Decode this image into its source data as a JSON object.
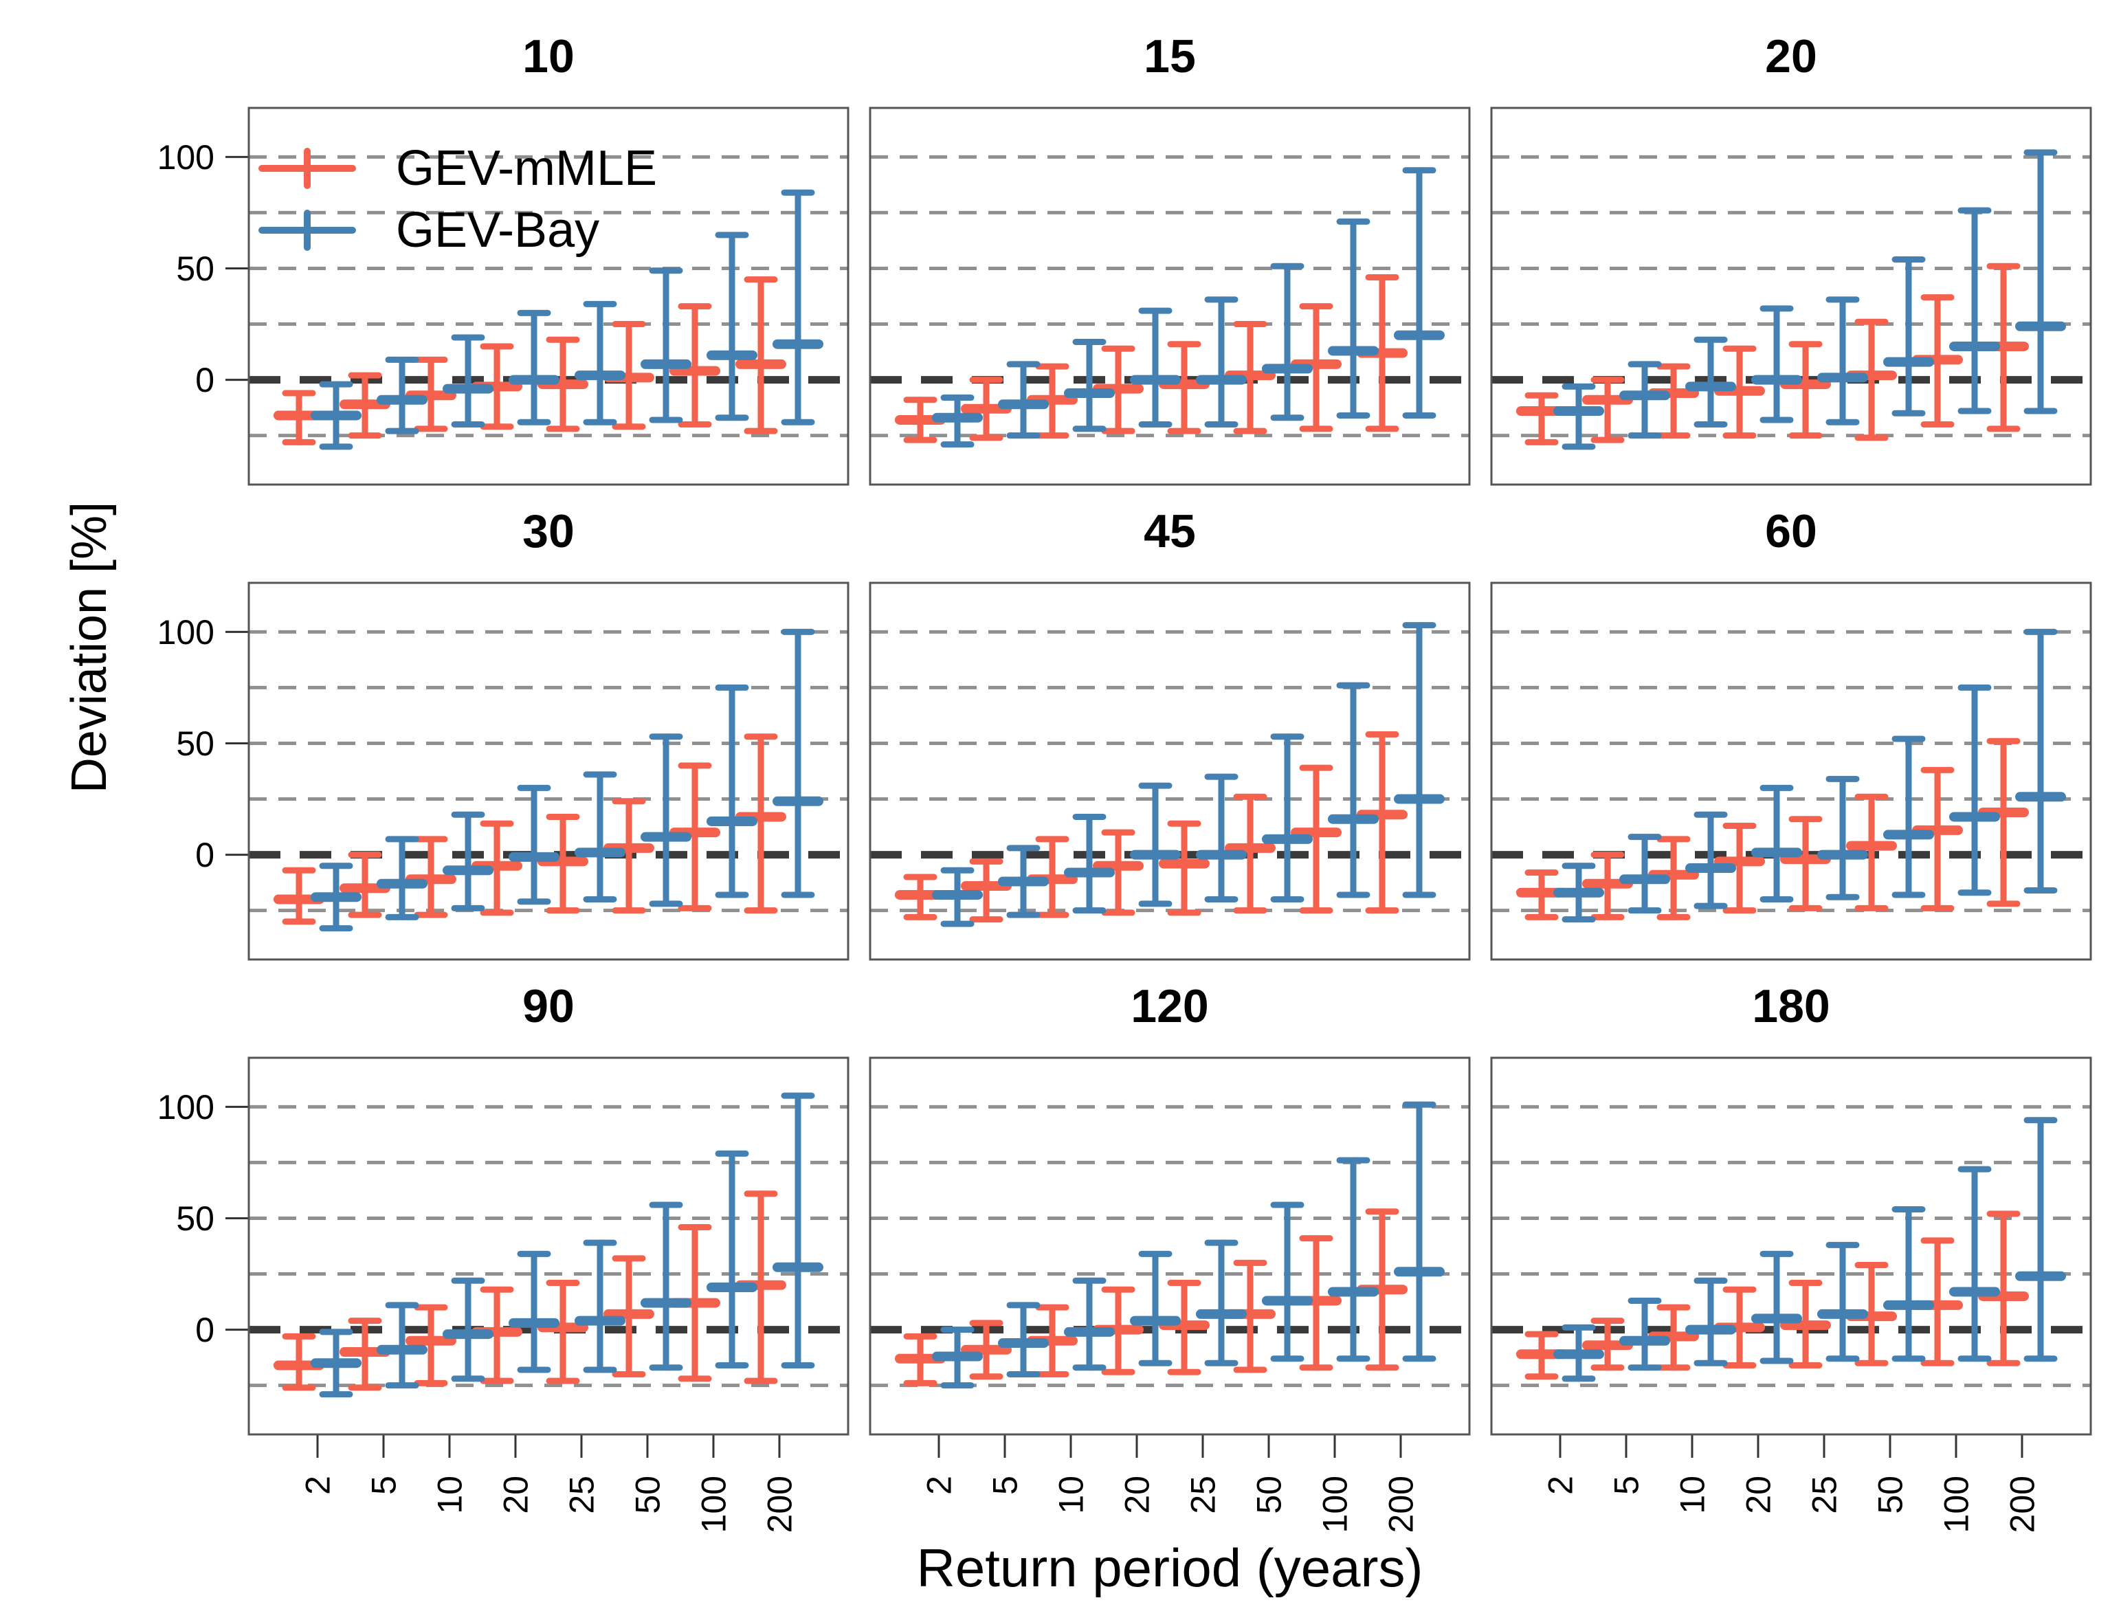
{
  "figure": {
    "y_axis_label": "Deviation [%]",
    "x_axis_label": "Return period (years)"
  },
  "legend": {
    "items": [
      {
        "label": "GEV-mMLE",
        "color": "#f4614d"
      },
      {
        "label": "GEV-Bay",
        "color": "#4480b1"
      }
    ]
  },
  "chart_data": {
    "type": "errorbar",
    "title": "",
    "xlabel": "Return period (years)",
    "ylabel": "Deviation [%]",
    "categories": [
      2,
      5,
      10,
      20,
      25,
      50,
      100,
      200
    ],
    "x_tick_labels": [
      "2",
      "5",
      "10",
      "20",
      "25",
      "50",
      "100",
      "200"
    ],
    "y_tick_values": [
      100,
      50,
      0
    ],
    "y_tick_labels": [
      "100",
      "50",
      "0"
    ],
    "ylim": [
      -47,
      122
    ],
    "gridlines": [
      100,
      75,
      50,
      25,
      -25
    ],
    "zero_line": 0,
    "grid": true,
    "legend_position": "upper-left-first-panel",
    "series_names": [
      "GEV-mMLE",
      "GEV-Bay"
    ],
    "colors": {
      "GEV-mMLE": "#f4614d",
      "GEV-Bay": "#4480b1"
    },
    "panels": [
      {
        "title": "10",
        "series": [
          {
            "name": "GEV-mMLE",
            "mid": [
              -16,
              -11,
              -7,
              -3,
              -2,
              1,
              4,
              7
            ],
            "lo": [
              -28,
              -25,
              -22,
              -21,
              -22,
              -21,
              -20,
              -23
            ],
            "hi": [
              -6,
              2,
              9,
              15,
              18,
              25,
              33,
              45
            ]
          },
          {
            "name": "GEV-Bay",
            "mid": [
              -16,
              -9,
              -4,
              0,
              2,
              7,
              11,
              16
            ],
            "lo": [
              -30,
              -23,
              -20,
              -19,
              -19,
              -18,
              -17,
              -19
            ],
            "hi": [
              -2,
              9,
              19,
              30,
              34,
              49,
              65,
              84
            ]
          }
        ]
      },
      {
        "title": "15",
        "series": [
          {
            "name": "GEV-mMLE",
            "mid": [
              -18,
              -13,
              -9,
              -4,
              -2,
              2,
              7,
              12
            ],
            "lo": [
              -27,
              -26,
              -25,
              -23,
              -23,
              -23,
              -22,
              -22
            ],
            "hi": [
              -9,
              0,
              6,
              14,
              16,
              25,
              33,
              46
            ]
          },
          {
            "name": "GEV-Bay",
            "mid": [
              -17,
              -11,
              -6,
              0,
              0,
              5,
              13,
              20
            ],
            "lo": [
              -29,
              -25,
              -22,
              -20,
              -20,
              -17,
              -16,
              -16
            ],
            "hi": [
              -8,
              7,
              17,
              31,
              36,
              51,
              71,
              94
            ]
          }
        ]
      },
      {
        "title": "20",
        "series": [
          {
            "name": "GEV-mMLE",
            "mid": [
              -14,
              -9,
              -6,
              -5,
              -2,
              2,
              9,
              15
            ],
            "lo": [
              -28,
              -27,
              -25,
              -25,
              -25,
              -26,
              -20,
              -22
            ],
            "hi": [
              -7,
              0,
              6,
              14,
              16,
              26,
              37,
              51
            ]
          },
          {
            "name": "GEV-Bay",
            "mid": [
              -14,
              -7,
              -3,
              0,
              1,
              8,
              15,
              24
            ],
            "lo": [
              -30,
              -25,
              -20,
              -18,
              -19,
              -15,
              -14,
              -14
            ],
            "hi": [
              -3,
              7,
              18,
              32,
              36,
              54,
              76,
              102
            ]
          }
        ]
      },
      {
        "title": "30",
        "series": [
          {
            "name": "GEV-mMLE",
            "mid": [
              -20,
              -15,
              -11,
              -5,
              -3,
              3,
              10,
              17
            ],
            "lo": [
              -30,
              -27,
              -27,
              -26,
              -25,
              -25,
              -24,
              -25
            ],
            "hi": [
              -7,
              0,
              7,
              14,
              17,
              24,
              40,
              53
            ]
          },
          {
            "name": "GEV-Bay",
            "mid": [
              -19,
              -13,
              -7,
              -1,
              1,
              8,
              15,
              24
            ],
            "lo": [
              -33,
              -28,
              -24,
              -21,
              -20,
              -22,
              -18,
              -18
            ],
            "hi": [
              -5,
              7,
              18,
              30,
              36,
              53,
              75,
              100
            ]
          }
        ]
      },
      {
        "title": "45",
        "series": [
          {
            "name": "GEV-mMLE",
            "mid": [
              -18,
              -14,
              -11,
              -5,
              -4,
              3,
              10,
              18
            ],
            "lo": [
              -28,
              -29,
              -27,
              -26,
              -26,
              -25,
              -25,
              -25
            ],
            "hi": [
              -10,
              -3,
              7,
              10,
              14,
              26,
              39,
              54
            ]
          },
          {
            "name": "GEV-Bay",
            "mid": [
              -18,
              -12,
              -8,
              0,
              0,
              7,
              16,
              25
            ],
            "lo": [
              -31,
              -27,
              -25,
              -22,
              -20,
              -20,
              -18,
              -18
            ],
            "hi": [
              -7,
              3,
              17,
              31,
              35,
              53,
              76,
              103
            ]
          }
        ]
      },
      {
        "title": "60",
        "series": [
          {
            "name": "GEV-mMLE",
            "mid": [
              -17,
              -13,
              -9,
              -3,
              -2,
              4,
              11,
              19
            ],
            "lo": [
              -28,
              -28,
              -28,
              -25,
              -24,
              -24,
              -24,
              -22
            ],
            "hi": [
              -8,
              0,
              7,
              13,
              16,
              26,
              38,
              51
            ]
          },
          {
            "name": "GEV-Bay",
            "mid": [
              -17,
              -11,
              -6,
              1,
              0,
              9,
              17,
              26
            ],
            "lo": [
              -29,
              -25,
              -23,
              -20,
              -19,
              -18,
              -17,
              -16
            ],
            "hi": [
              -5,
              8,
              18,
              30,
              34,
              52,
              75,
              100
            ]
          }
        ]
      },
      {
        "title": "90",
        "series": [
          {
            "name": "GEV-mMLE",
            "mid": [
              -16,
              -10,
              -5,
              -1,
              1,
              7,
              12,
              20
            ],
            "lo": [
              -26,
              -26,
              -24,
              -23,
              -23,
              -20,
              -22,
              -23
            ],
            "hi": [
              -3,
              4,
              10,
              18,
              21,
              32,
              46,
              61
            ]
          },
          {
            "name": "GEV-Bay",
            "mid": [
              -15,
              -9,
              -2,
              3,
              4,
              12,
              19,
              28
            ],
            "lo": [
              -29,
              -25,
              -22,
              -18,
              -18,
              -17,
              -16,
              -16
            ],
            "hi": [
              -1,
              11,
              22,
              34,
              39,
              56,
              79,
              105
            ]
          }
        ]
      },
      {
        "title": "120",
        "series": [
          {
            "name": "GEV-mMLE",
            "mid": [
              -13,
              -9,
              -5,
              0,
              2,
              7,
              13,
              18
            ],
            "lo": [
              -24,
              -21,
              -20,
              -19,
              -19,
              -18,
              -17,
              -17
            ],
            "hi": [
              -3,
              3,
              10,
              18,
              21,
              30,
              41,
              53
            ]
          },
          {
            "name": "GEV-Bay",
            "mid": [
              -12,
              -6,
              -1,
              4,
              7,
              13,
              17,
              26
            ],
            "lo": [
              -25,
              -20,
              -17,
              -15,
              -15,
              -13,
              -13,
              -13
            ],
            "hi": [
              0,
              11,
              22,
              34,
              39,
              56,
              76,
              101
            ]
          }
        ]
      },
      {
        "title": "180",
        "series": [
          {
            "name": "GEV-mMLE",
            "mid": [
              -11,
              -7,
              -3,
              1,
              2,
              6,
              11,
              15
            ],
            "lo": [
              -21,
              -17,
              -17,
              -16,
              -16,
              -15,
              -15,
              -15
            ],
            "hi": [
              -2,
              4,
              10,
              18,
              21,
              29,
              40,
              52
            ]
          },
          {
            "name": "GEV-Bay",
            "mid": [
              -11,
              -5,
              0,
              5,
              7,
              11,
              17,
              24
            ],
            "lo": [
              -22,
              -17,
              -15,
              -14,
              -13,
              -13,
              -13,
              -13
            ],
            "hi": [
              1,
              13,
              22,
              34,
              38,
              54,
              72,
              94
            ]
          }
        ]
      }
    ]
  }
}
